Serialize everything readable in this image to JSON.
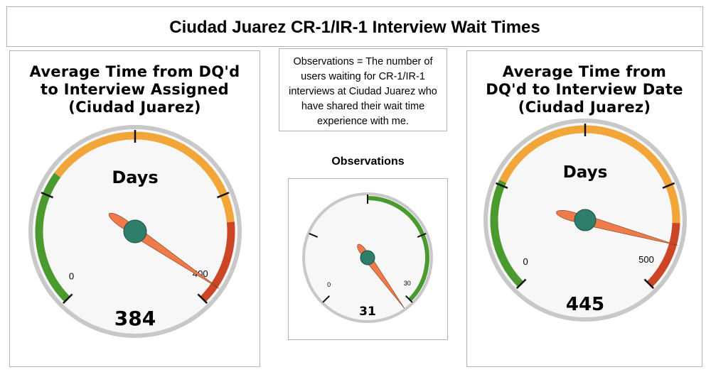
{
  "title": "Ciudad Juarez CR-1/IR-1 Interview Wait Times",
  "note": "Observations = The number of users waiting for CR-1/IR-1 interviews at Ciudad Juarez who have shared their wait time experience with me.",
  "colors": {
    "green": "#4a9a2f",
    "orange": "#f2a63a",
    "red": "#cc4527",
    "needle": "#ef7a4a",
    "hub": "#2f7d6b",
    "face": "#f7f7f7",
    "rim": "#c8c8c8"
  },
  "chart_data": [
    {
      "type": "gauge",
      "title": "Average Time from DQ'd to Interview Assigned (Ciudad Juarez)",
      "title_lines": [
        "Average Time from DQ'd",
        "to Interview Assigned",
        "(Ciudad Juarez)"
      ],
      "label": "Days",
      "value": 384,
      "value_label": "384",
      "min": 0,
      "max": 400,
      "min_label": "0",
      "max_label": "400",
      "bands": [
        {
          "from": 0,
          "to": 120,
          "color": "green"
        },
        {
          "from": 120,
          "to": 325,
          "color": "orange"
        },
        {
          "from": 325,
          "to": 400,
          "color": "red"
        }
      ],
      "major_ticks": 5
    },
    {
      "type": "gauge",
      "title": "Observations",
      "label": "",
      "value": 31,
      "value_label": "31",
      "min": 0,
      "max": 30,
      "min_label": "0",
      "max_label": "30",
      "bands": [
        {
          "from": 15,
          "to": 30,
          "color": "green"
        }
      ],
      "major_ticks": 5
    },
    {
      "type": "gauge",
      "title": "Average Time from DQ'd to Interview Date (Ciudad Juarez)",
      "title_lines": [
        "Average Time from",
        "DQ'd to Interview Date",
        "(Ciudad Juarez)"
      ],
      "label": "Days",
      "value": 445,
      "value_label": "445",
      "min": 0,
      "max": 500,
      "min_label": "0",
      "max_label": "500",
      "bands": [
        {
          "from": 0,
          "to": 130,
          "color": "green"
        },
        {
          "from": 130,
          "to": 420,
          "color": "orange"
        },
        {
          "from": 420,
          "to": 500,
          "color": "red"
        }
      ],
      "major_ticks": 5
    }
  ]
}
